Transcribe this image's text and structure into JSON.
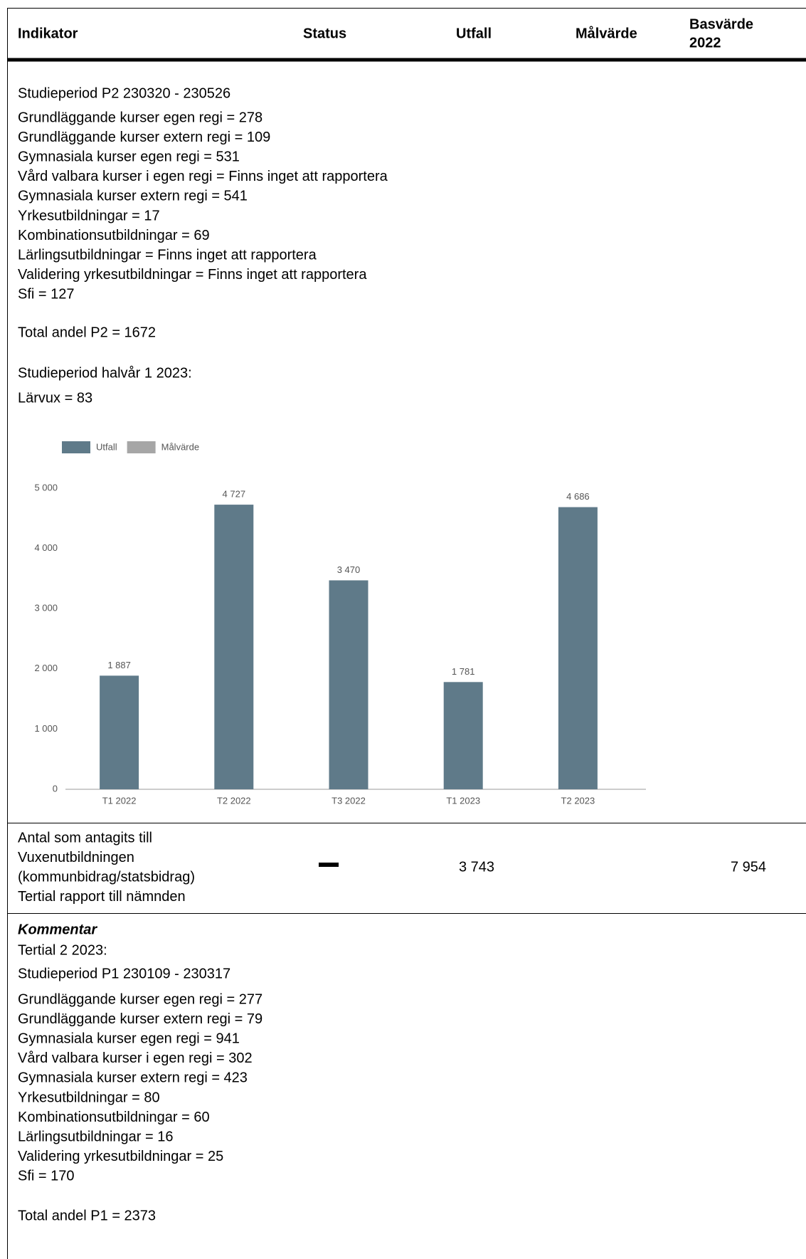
{
  "header": {
    "cells": [
      "Indikator",
      "Status",
      "Utfall",
      "Målvärde"
    ],
    "last_lines": [
      "Basvärde",
      "2022"
    ]
  },
  "section1": {
    "lines": [
      "Studieperiod P2 230320 - 230526",
      "Grundläggande kurser egen regi = 278",
      "Grundläggande kurser extern regi = 109",
      "Gymnasiala kurser egen regi = 531",
      "Vård valbara kurser i egen regi = Finns inget att rapportera",
      "Gymnasiala kurser extern regi = 541",
      "Yrkesutbildningar = 17",
      "Kombinationsutbildningar = 69",
      "Lärlingsutbildningar = Finns inget att rapportera",
      "Validering yrkesutbildningar = Finns inget att rapportera",
      "Sfi = 127",
      "Total andel P2 = 1672",
      "Studieperiod halvår 1 2023:",
      "Lärvux = 83"
    ]
  },
  "chart_data": {
    "type": "bar",
    "categories": [
      "T1 2022",
      "T2 2022",
      "T3 2022",
      "T1 2023",
      "T2 2023"
    ],
    "series": [
      {
        "name": "Utfall",
        "color": "#5f7a89",
        "values": [
          1887,
          4727,
          3470,
          1781,
          4686
        ],
        "value_labels": [
          "1 887",
          "4 727",
          "3 470",
          "1 781",
          "4 686"
        ]
      },
      {
        "name": "Målvärde",
        "color": "#a6a6a6",
        "values": [
          null,
          null,
          null,
          null,
          null
        ]
      }
    ],
    "ylim": [
      0,
      5000
    ],
    "yticks": [
      0,
      {
        "value": 1000,
        "label": "1 000"
      },
      {
        "value": 2000,
        "label": "2 000"
      },
      {
        "value": 3000,
        "label": "3 000"
      },
      {
        "value": 4000,
        "label": "4 000"
      },
      {
        "value": 5000,
        "label": "5 000"
      }
    ],
    "legend": "top-left",
    "grid": false
  },
  "row2": {
    "indicator_lines": [
      "Antal som antagits till",
      "Vuxenutbildningen",
      "(kommunbidrag/statsbidrag)",
      "Tertial rapport till nämnden"
    ],
    "utfall": "3 743",
    "basvarde": "7 954"
  },
  "row3": {
    "title": "Kommentar",
    "lines": [
      "Tertial 2 2023:",
      "Studieperiod P1 230109 - 230317",
      "Grundläggande kurser egen regi = 277",
      "Grundläggande kurser extern regi = 79",
      "Gymnasiala kurser egen regi = 941",
      "Vård valbara kurser i egen regi = 302",
      "Gymnasiala kurser extern regi = 423",
      "Yrkesutbildningar = 80",
      "Kombinationsutbildningar = 60",
      "Lärlingsutbildningar = 16",
      "Validering yrkesutbildningar = 25",
      "Sfi = 170",
      "Total andel P1 = 2373"
    ]
  }
}
